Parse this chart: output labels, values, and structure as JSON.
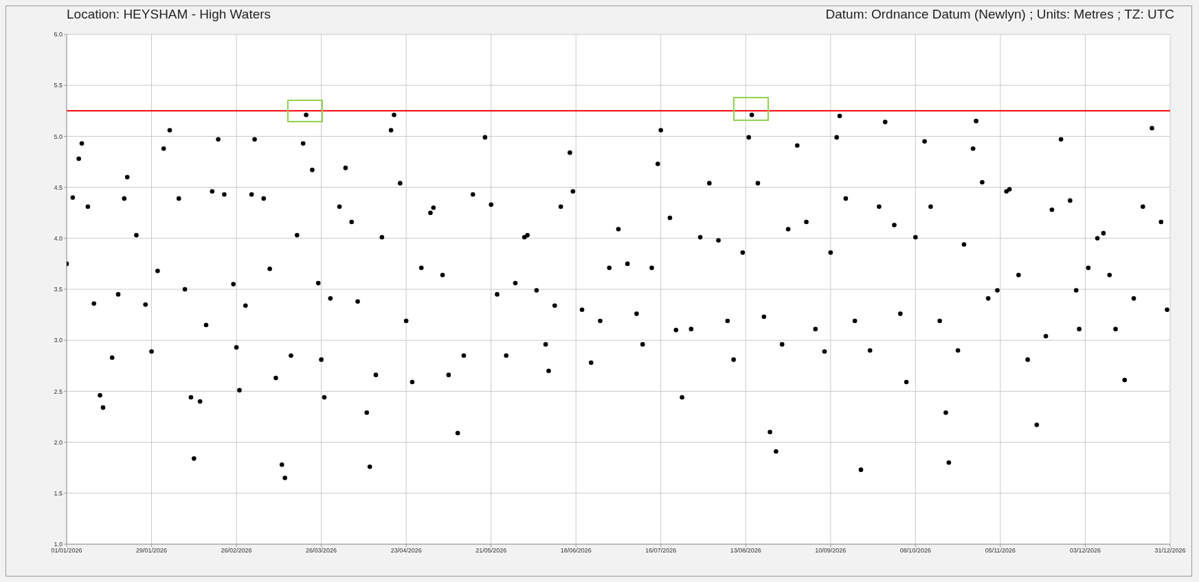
{
  "chart_data": {
    "type": "scatter",
    "title": "Location: HEYSHAM - High Waters",
    "subtitle": "Datum: Ordnance Datum (Newlyn) ; Units: Metres ; TZ: UTC",
    "marker": "circle",
    "grid": true,
    "legend": false,
    "xlim": [
      "2026-01-01",
      "2026-12-31"
    ],
    "xticks": [
      {
        "value": "2026-01-01",
        "label": "01/01/2026"
      },
      {
        "value": "2026-01-29",
        "label": "29/01/2026"
      },
      {
        "value": "2026-02-26",
        "label": "26/02/2026"
      },
      {
        "value": "2026-03-26",
        "label": "26/03/2026"
      },
      {
        "value": "2026-04-23",
        "label": "23/04/2026"
      },
      {
        "value": "2026-05-21",
        "label": "21/05/2026"
      },
      {
        "value": "2026-06-18",
        "label": "18/06/2026"
      },
      {
        "value": "2026-07-16",
        "label": "16/07/2026"
      },
      {
        "value": "2026-08-13",
        "label": "13/08/2026"
      },
      {
        "value": "2026-09-10",
        "label": "10/09/2026"
      },
      {
        "value": "2026-10-08",
        "label": "08/10/2026"
      },
      {
        "value": "2026-11-05",
        "label": "05/11/2026"
      },
      {
        "value": "2026-12-03",
        "label": "03/12/2026"
      },
      {
        "value": "2026-12-31",
        "label": "31/12/2026"
      }
    ],
    "ylim": [
      1,
      6
    ],
    "yticks": [
      {
        "value": 1,
        "label": "1.0"
      },
      {
        "value": 1.5,
        "label": "1.5"
      },
      {
        "value": 2,
        "label": "2.0"
      },
      {
        "value": 2.5,
        "label": "2.5"
      },
      {
        "value": 3,
        "label": "3.0"
      },
      {
        "value": 3.5,
        "label": "3.5"
      },
      {
        "value": 4,
        "label": "4.0"
      },
      {
        "value": 4.5,
        "label": "4.5"
      },
      {
        "value": 5,
        "label": "5.0"
      },
      {
        "value": 5.5,
        "label": "5.5"
      },
      {
        "value": 6,
        "label": "6.0"
      }
    ],
    "ref_lines": [
      {
        "axis": "y",
        "value": 5.25,
        "color": "#ff0000"
      }
    ],
    "series": [
      {
        "color": "#000000",
        "x": [
          "2026-01-01",
          "2026-01-03",
          "2026-01-05",
          "2026-01-06",
          "2026-01-08",
          "2026-01-10",
          "2026-01-12",
          "2026-01-13",
          "2026-01-16",
          "2026-01-18",
          "2026-01-20",
          "2026-01-21",
          "2026-01-24",
          "2026-01-27",
          "2026-01-29",
          "2026-01-31",
          "2026-02-02",
          "2026-02-04",
          "2026-02-07",
          "2026-02-09",
          "2026-02-11",
          "2026-02-12",
          "2026-02-14",
          "2026-02-16",
          "2026-02-18",
          "2026-02-20",
          "2026-02-22",
          "2026-02-25",
          "2026-02-26",
          "2026-02-27",
          "2026-03-01",
          "2026-03-03",
          "2026-03-04",
          "2026-03-07",
          "2026-03-09",
          "2026-03-11",
          "2026-03-13",
          "2026-03-14",
          "2026-03-16",
          "2026-03-18",
          "2026-03-20",
          "2026-03-21",
          "2026-03-23",
          "2026-03-25",
          "2026-03-26",
          "2026-03-27",
          "2026-03-29",
          "2026-04-01",
          "2026-04-03",
          "2026-04-05",
          "2026-04-07",
          "2026-04-10",
          "2026-04-11",
          "2026-04-13",
          "2026-04-15",
          "2026-04-18",
          "2026-04-19",
          "2026-04-21",
          "2026-04-23",
          "2026-04-25",
          "2026-04-28",
          "2026-05-01",
          "2026-05-02",
          "2026-05-05",
          "2026-05-07",
          "2026-05-10",
          "2026-05-12",
          "2026-05-15",
          "2026-05-19",
          "2026-05-21",
          "2026-05-23",
          "2026-05-26",
          "2026-05-29",
          "2026-06-01",
          "2026-06-02",
          "2026-06-05",
          "2026-06-08",
          "2026-06-09",
          "2026-06-11",
          "2026-06-13",
          "2026-06-16",
          "2026-06-17",
          "2026-06-20",
          "2026-06-23",
          "2026-06-26",
          "2026-06-29",
          "2026-07-02",
          "2026-07-05",
          "2026-07-08",
          "2026-07-10",
          "2026-07-13",
          "2026-07-15",
          "2026-07-16",
          "2026-07-19",
          "2026-07-21",
          "2026-07-23",
          "2026-07-26",
          "2026-07-29",
          "2026-08-01",
          "2026-08-04",
          "2026-08-07",
          "2026-08-09",
          "2026-08-12",
          "2026-08-14",
          "2026-08-15",
          "2026-08-17",
          "2026-08-19",
          "2026-08-21",
          "2026-08-23",
          "2026-08-25",
          "2026-08-27",
          "2026-08-30",
          "2026-09-02",
          "2026-09-05",
          "2026-09-08",
          "2026-09-10",
          "2026-09-12",
          "2026-09-13",
          "2026-09-15",
          "2026-09-18",
          "2026-09-20",
          "2026-09-23",
          "2026-09-26",
          "2026-09-28",
          "2026-10-01",
          "2026-10-03",
          "2026-10-05",
          "2026-10-08",
          "2026-10-11",
          "2026-10-13",
          "2026-10-16",
          "2026-10-18",
          "2026-10-19",
          "2026-10-22",
          "2026-10-24",
          "2026-10-27",
          "2026-10-28",
          "2026-10-30",
          "2026-11-01",
          "2026-11-04",
          "2026-11-07",
          "2026-11-08",
          "2026-11-11",
          "2026-11-14",
          "2026-11-17",
          "2026-11-20",
          "2026-11-22",
          "2026-11-25",
          "2026-11-28",
          "2026-11-30",
          "2026-12-01",
          "2026-12-04",
          "2026-12-07",
          "2026-12-09",
          "2026-12-11",
          "2026-12-13",
          "2026-12-16",
          "2026-12-19",
          "2026-12-22",
          "2026-12-25",
          "2026-12-28",
          "2026-12-30"
        ],
        "values": [
          3.75,
          4.4,
          4.78,
          4.93,
          4.31,
          3.36,
          2.46,
          2.34,
          2.83,
          3.45,
          4.39,
          4.6,
          4.03,
          3.35,
          2.89,
          3.68,
          4.88,
          5.06,
          4.39,
          3.5,
          2.44,
          1.84,
          2.4,
          3.15,
          4.46,
          4.97,
          4.43,
          3.55,
          2.93,
          2.51,
          3.34,
          4.43,
          4.97,
          4.39,
          3.7,
          2.63,
          1.78,
          1.65,
          2.85,
          4.03,
          4.93,
          5.21,
          4.67,
          3.56,
          2.81,
          2.44,
          3.41,
          4.31,
          4.69,
          4.16,
          3.38,
          2.29,
          1.76,
          2.66,
          4.01,
          5.06,
          5.21,
          4.54,
          3.19,
          2.59,
          3.71,
          4.25,
          4.3,
          3.64,
          2.66,
          2.09,
          2.85,
          4.43,
          4.99,
          4.33,
          3.45,
          2.85,
          3.56,
          4.01,
          4.03,
          3.49,
          2.96,
          2.7,
          3.34,
          4.31,
          4.84,
          4.46,
          3.3,
          2.78,
          3.19,
          3.71,
          4.09,
          3.75,
          3.26,
          2.96,
          3.71,
          4.73,
          5.06,
          4.2,
          3.1,
          2.44,
          3.11,
          4.01,
          4.54,
          3.98,
          3.19,
          2.81,
          3.86,
          4.99,
          5.21,
          4.54,
          3.23,
          2.1,
          1.91,
          2.96,
          4.09,
          4.91,
          4.16,
          3.11,
          2.89,
          3.86,
          4.99,
          5.2,
          4.39,
          3.19,
          1.73,
          2.9,
          4.31,
          5.14,
          4.13,
          3.26,
          2.59,
          4.01,
          4.95,
          4.31,
          3.19,
          2.29,
          1.8,
          2.9,
          3.94,
          4.88,
          5.15,
          4.55,
          3.41,
          3.49,
          4.46,
          4.48,
          3.64,
          2.81,
          2.17,
          3.04,
          4.28,
          4.97,
          4.37,
          3.49,
          3.11,
          3.71,
          4.0,
          4.05,
          3.64,
          3.11,
          2.61,
          3.41,
          4.31,
          5.08,
          4.16,
          3.3
        ]
      }
    ]
  }
}
